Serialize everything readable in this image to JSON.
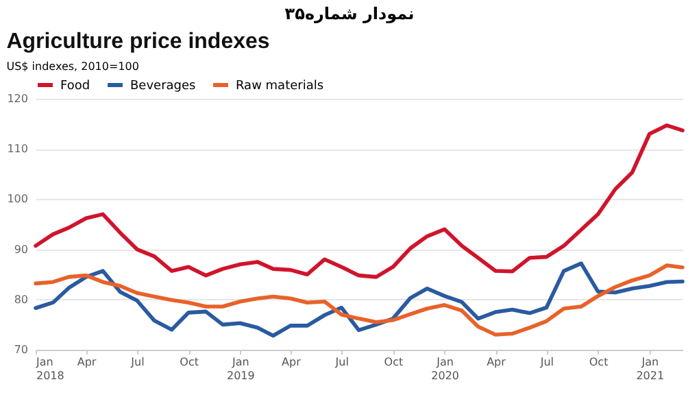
{
  "chart_data": {
    "type": "line",
    "title": "Agriculture price indexes",
    "subtitle": "US$ indexes, 2010=100",
    "annotations": [
      "نمودار شماره۳۵"
    ],
    "x": [
      "2018-01",
      "2018-02",
      "2018-03",
      "2018-04",
      "2018-05",
      "2018-06",
      "2018-07",
      "2018-08",
      "2018-09",
      "2018-10",
      "2018-11",
      "2018-12",
      "2019-01",
      "2019-02",
      "2019-03",
      "2019-04",
      "2019-05",
      "2019-06",
      "2019-07",
      "2019-08",
      "2019-09",
      "2019-10",
      "2019-11",
      "2019-12",
      "2020-01",
      "2020-02",
      "2020-03",
      "2020-04",
      "2020-05",
      "2020-06",
      "2020-07",
      "2020-08",
      "2020-09",
      "2020-10",
      "2020-11",
      "2020-12",
      "2021-01",
      "2021-02",
      "2021-03"
    ],
    "series": [
      {
        "name": "Food",
        "color": "#d0142c",
        "values": [
          90.7,
          93,
          94.3,
          96.2,
          97,
          93.3,
          90,
          88.6,
          85.7,
          86.5,
          84.8,
          86.1,
          87,
          87.5,
          86.1,
          85.9,
          85,
          88,
          86.5,
          84.8,
          84.5,
          86.5,
          90.2,
          92.6,
          94,
          90.7,
          88.3,
          85.7,
          85.6,
          88.3,
          88.5,
          90.7,
          93.9,
          97,
          102,
          105.3,
          113,
          114.7,
          113.7
        ]
      },
      {
        "name": "Beverages",
        "color": "#2a5aa0",
        "values": [
          78.3,
          79.4,
          82.3,
          84.5,
          85.7,
          81.5,
          79.8,
          75.8,
          74,
          77.4,
          77.6,
          75,
          75.3,
          74.4,
          72.8,
          74.8,
          74.8,
          76.9,
          78.4,
          73.9,
          75,
          76.2,
          80.3,
          82.2,
          80.7,
          79.5,
          76.2,
          77.5,
          78,
          77.3,
          78.4,
          85.7,
          87.2,
          81.6,
          81.4,
          82.2,
          82.7,
          83.5,
          83.6
        ]
      },
      {
        "name": "Raw materials",
        "color": "#e8622a",
        "values": [
          83.2,
          83.5,
          84.5,
          84.8,
          83.5,
          82.7,
          81.3,
          80.6,
          79.9,
          79.4,
          78.6,
          78.6,
          79.6,
          80.2,
          80.6,
          80.2,
          79.4,
          79.6,
          77,
          76.2,
          75.5,
          75.9,
          77.1,
          78.2,
          78.9,
          77.8,
          74.6,
          73,
          73.2,
          74.4,
          75.7,
          78.2,
          78.6,
          80.7,
          82.5,
          83.8,
          84.8,
          86.8,
          86.4
        ]
      }
    ],
    "xlim": [
      "2018-01",
      "2021-03"
    ],
    "xticks": [
      {
        "value": "2018-01",
        "label": "Jan 2018"
      },
      {
        "value": "2018-04",
        "label": "Apr"
      },
      {
        "value": "2018-07",
        "label": "Jul"
      },
      {
        "value": "2018-10",
        "label": "Oct"
      },
      {
        "value": "2019-01",
        "label": "Jan 2019"
      },
      {
        "value": "2019-04",
        "label": "Apr"
      },
      {
        "value": "2019-07",
        "label": "Jul"
      },
      {
        "value": "2019-10",
        "label": "Oct"
      },
      {
        "value": "2020-01",
        "label": "Jan 2020"
      },
      {
        "value": "2020-04",
        "label": "Apr"
      },
      {
        "value": "2020-07",
        "label": "Jul"
      },
      {
        "value": "2020-10",
        "label": "Oct"
      },
      {
        "value": "2021-01",
        "label": "Jan 2021"
      }
    ],
    "ylim": [
      70,
      120
    ],
    "yticks": [
      70,
      80,
      90,
      100,
      110,
      120
    ],
    "grid": "y",
    "legend": "top left",
    "marker": "none",
    "line_style": "solid"
  }
}
